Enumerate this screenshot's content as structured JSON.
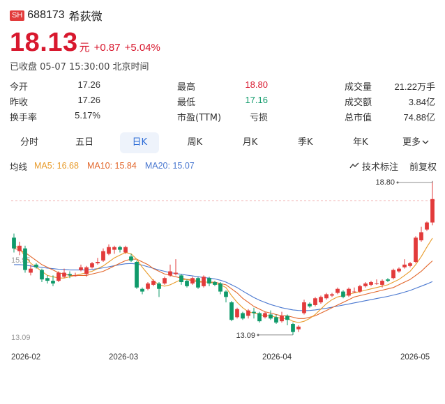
{
  "header": {
    "market": "SH",
    "code": "688173",
    "name": "希荻微"
  },
  "quote": {
    "price": "18.13",
    "unit": "元",
    "change": "+0.87",
    "change_pct": "+5.04%",
    "status": "已收盘 05-07 15:30:00 北京时间"
  },
  "stats": [
    [
      {
        "label": "今开",
        "value": "17.26",
        "color": ""
      },
      {
        "label": "最高",
        "value": "18.80",
        "color": "red"
      },
      {
        "label": "成交量",
        "value": "21.22万手",
        "color": ""
      }
    ],
    [
      {
        "label": "昨收",
        "value": "17.26",
        "color": ""
      },
      {
        "label": "最低",
        "value": "17.16",
        "color": "green"
      },
      {
        "label": "成交额",
        "value": "3.84亿",
        "color": ""
      }
    ],
    [
      {
        "label": "换手率",
        "value": "5.17%",
        "color": ""
      },
      {
        "label": "市盈(TTM)",
        "value": "亏损",
        "color": ""
      },
      {
        "label": "总市值",
        "value": "74.88亿",
        "color": ""
      }
    ]
  ],
  "tabs": [
    "分时",
    "五日",
    "日K",
    "周K",
    "月K",
    "季K",
    "年K",
    "更多"
  ],
  "active_tab": 2,
  "ma": {
    "label": "均线",
    "ma5": "MA5: 16.68",
    "ma10": "MA10: 15.84",
    "ma20": "MA20: 15.07",
    "tech": "技术标注",
    "adjust": "前复权"
  },
  "colors": {
    "up": "#e23b3b",
    "down": "#0f9a6a",
    "ma5": "#e89b2a",
    "ma10": "#e2662a",
    "ma20": "#4a78d0"
  },
  "chart_data": {
    "type": "candlestick",
    "y_labels": [
      "15.95",
      "13.09"
    ],
    "x_labels": [
      "2026-02",
      "2026-03",
      "2026-04",
      "2026-05"
    ],
    "max_label": "18.80",
    "min_label": "13.09",
    "ylim": [
      12.7,
      18.9
    ],
    "candles": [
      [
        16.7,
        16.3,
        16.85,
        16.15
      ],
      [
        16.2,
        16.4,
        16.55,
        16.05
      ],
      [
        16.3,
        15.5,
        16.4,
        15.4
      ],
      [
        15.4,
        15.55,
        15.7,
        15.3
      ],
      [
        15.7,
        15.6,
        15.75,
        15.55
      ],
      [
        15.5,
        15.15,
        15.55,
        15.05
      ],
      [
        15.2,
        15.1,
        15.3,
        15.0
      ],
      [
        15.1,
        15.0,
        15.3,
        14.9
      ],
      [
        15.1,
        15.4,
        15.45,
        15.05
      ],
      [
        15.25,
        15.4,
        15.55,
        15.2
      ],
      [
        15.35,
        15.3,
        15.45,
        15.2
      ],
      [
        15.3,
        15.3,
        15.4,
        15.25
      ],
      [
        15.5,
        15.6,
        15.7,
        15.45
      ],
      [
        15.35,
        15.6,
        15.65,
        15.25
      ],
      [
        15.6,
        15.75,
        15.8,
        15.55
      ],
      [
        15.75,
        15.8,
        15.95,
        15.7
      ],
      [
        15.85,
        16.2,
        16.3,
        15.8
      ],
      [
        16.1,
        16.35,
        16.45,
        16.05
      ],
      [
        16.25,
        16.35,
        16.4,
        16.1
      ],
      [
        16.35,
        16.25,
        16.4,
        16.15
      ],
      [
        16.15,
        16.35,
        16.4,
        16.1
      ],
      [
        16.0,
        15.85,
        16.1,
        15.8
      ],
      [
        15.8,
        14.85,
        15.85,
        14.8
      ],
      [
        14.8,
        14.7,
        14.85,
        14.6
      ],
      [
        14.8,
        15.0,
        15.05,
        14.75
      ],
      [
        14.95,
        15.1,
        15.15,
        14.9
      ],
      [
        15.0,
        14.8,
        15.05,
        14.5
      ],
      [
        15.0,
        15.2,
        15.25,
        14.95
      ],
      [
        15.3,
        15.45,
        15.7,
        15.25
      ],
      [
        15.35,
        15.4,
        15.9,
        15.3
      ],
      [
        15.3,
        15.05,
        15.35,
        14.95
      ],
      [
        15.1,
        14.9,
        15.15,
        14.85
      ],
      [
        15.0,
        15.2,
        15.25,
        14.95
      ],
      [
        15.2,
        14.85,
        15.25,
        14.8
      ],
      [
        14.9,
        15.25,
        15.3,
        14.85
      ],
      [
        15.2,
        15.0,
        15.25,
        14.9
      ],
      [
        15.05,
        14.95,
        15.1,
        14.9
      ],
      [
        15.0,
        14.7,
        15.05,
        14.6
      ],
      [
        14.7,
        14.5,
        14.75,
        14.3
      ],
      [
        14.3,
        13.65,
        14.35,
        13.6
      ],
      [
        13.75,
        14.05,
        14.1,
        13.7
      ],
      [
        13.9,
        13.7,
        13.95,
        13.65
      ],
      [
        13.8,
        14.0,
        14.05,
        13.7
      ],
      [
        13.95,
        13.9,
        14.1,
        13.7
      ],
      [
        13.9,
        13.6,
        13.95,
        13.55
      ],
      [
        13.75,
        13.9,
        13.95,
        13.7
      ],
      [
        13.85,
        13.7,
        14.0,
        13.65
      ],
      [
        13.75,
        13.55,
        13.85,
        13.5
      ],
      [
        13.6,
        13.8,
        13.95,
        13.55
      ],
      [
        13.8,
        13.65,
        13.85,
        13.45
      ],
      [
        13.5,
        13.2,
        13.55,
        13.09
      ],
      [
        13.3,
        13.4,
        13.45,
        13.2
      ],
      [
        13.9,
        14.3,
        14.4,
        13.85
      ],
      [
        14.25,
        14.15,
        14.3,
        14.1
      ],
      [
        14.2,
        14.45,
        14.5,
        14.15
      ],
      [
        14.3,
        14.5,
        14.55,
        14.25
      ],
      [
        14.45,
        14.6,
        14.65,
        14.4
      ],
      [
        14.55,
        14.6,
        14.65,
        14.5
      ],
      [
        14.65,
        14.8,
        14.85,
        14.6
      ],
      [
        14.7,
        14.5,
        14.75,
        14.45
      ],
      [
        14.55,
        14.8,
        14.85,
        14.5
      ],
      [
        14.7,
        14.7,
        14.85,
        14.65
      ],
      [
        14.7,
        14.9,
        14.95,
        14.65
      ],
      [
        14.9,
        15.0,
        15.05,
        14.85
      ],
      [
        14.95,
        15.05,
        15.1,
        14.9
      ],
      [
        15.0,
        15.0,
        15.15,
        14.95
      ],
      [
        14.95,
        15.1,
        15.15,
        14.85
      ],
      [
        15.15,
        15.1,
        15.2,
        15.05
      ],
      [
        15.2,
        15.5,
        15.55,
        15.15
      ],
      [
        15.45,
        15.55,
        15.6,
        15.4
      ],
      [
        15.6,
        15.7,
        15.9,
        15.55
      ],
      [
        15.65,
        15.75,
        15.8,
        15.6
      ],
      [
        15.8,
        16.7,
        16.75,
        15.75
      ],
      [
        16.6,
        16.9,
        17.1,
        16.55
      ],
      [
        17.0,
        17.26,
        17.3,
        16.95
      ],
      [
        17.26,
        18.13,
        18.8,
        17.16
      ]
    ],
    "ma5": [
      16.4,
      16.3,
      16.0,
      15.75,
      15.6,
      15.45,
      15.3,
      15.25,
      15.2,
      15.2,
      15.25,
      15.3,
      15.35,
      15.4,
      15.45,
      15.55,
      15.65,
      15.8,
      15.95,
      16.05,
      16.15,
      16.1,
      15.9,
      15.6,
      15.35,
      15.1,
      14.95,
      14.9,
      14.95,
      15.05,
      15.15,
      15.15,
      15.15,
      15.1,
      15.05,
      15.05,
      15.0,
      14.95,
      14.85,
      14.55,
      14.3,
      14.1,
      13.95,
      13.9,
      13.85,
      13.8,
      13.8,
      13.75,
      13.7,
      13.7,
      13.6,
      13.55,
      13.6,
      13.7,
      13.85,
      14.05,
      14.25,
      14.4,
      14.5,
      14.55,
      14.6,
      14.65,
      14.7,
      14.75,
      14.8,
      14.85,
      14.9,
      14.95,
      15.05,
      15.15,
      15.3,
      15.45,
      15.7,
      16.0,
      16.35,
      16.68
    ],
    "ma10": [
      16.3,
      16.25,
      16.15,
      16.0,
      15.85,
      15.7,
      15.6,
      15.5,
      15.4,
      15.35,
      15.3,
      15.3,
      15.3,
      15.3,
      15.35,
      15.4,
      15.45,
      15.55,
      15.65,
      15.75,
      15.85,
      15.9,
      15.9,
      15.8,
      15.7,
      15.55,
      15.45,
      15.35,
      15.3,
      15.25,
      15.2,
      15.15,
      15.1,
      15.05,
      15.05,
      15.05,
      15.05,
      15.0,
      14.95,
      14.8,
      14.65,
      14.45,
      14.3,
      14.15,
      14.05,
      13.95,
      13.9,
      13.85,
      13.8,
      13.8,
      13.75,
      13.7,
      13.7,
      13.75,
      13.8,
      13.9,
      14.0,
      14.1,
      14.2,
      14.3,
      14.4,
      14.5,
      14.55,
      14.6,
      14.65,
      14.7,
      14.75,
      14.8,
      14.85,
      14.95,
      15.05,
      15.15,
      15.3,
      15.45,
      15.65,
      15.84
    ],
    "ma20": [
      15.7,
      15.7,
      15.68,
      15.65,
      15.62,
      15.6,
      15.57,
      15.55,
      15.53,
      15.52,
      15.5,
      15.5,
      15.5,
      15.5,
      15.52,
      15.55,
      15.58,
      15.62,
      15.66,
      15.7,
      15.73,
      15.74,
      15.72,
      15.68,
      15.62,
      15.56,
      15.5,
      15.45,
      15.4,
      15.37,
      15.34,
      15.31,
      15.28,
      15.25,
      15.22,
      15.2,
      15.17,
      15.12,
      15.05,
      14.95,
      14.85,
      14.72,
      14.6,
      14.48,
      14.38,
      14.3,
      14.22,
      14.16,
      14.1,
      14.06,
      14.02,
      14.0,
      13.99,
      14.0,
      14.02,
      14.05,
      14.08,
      14.12,
      14.16,
      14.2,
      14.24,
      14.28,
      14.32,
      14.36,
      14.4,
      14.44,
      14.48,
      14.52,
      14.57,
      14.62,
      14.68,
      14.74,
      14.82,
      14.9,
      14.98,
      15.07
    ]
  }
}
